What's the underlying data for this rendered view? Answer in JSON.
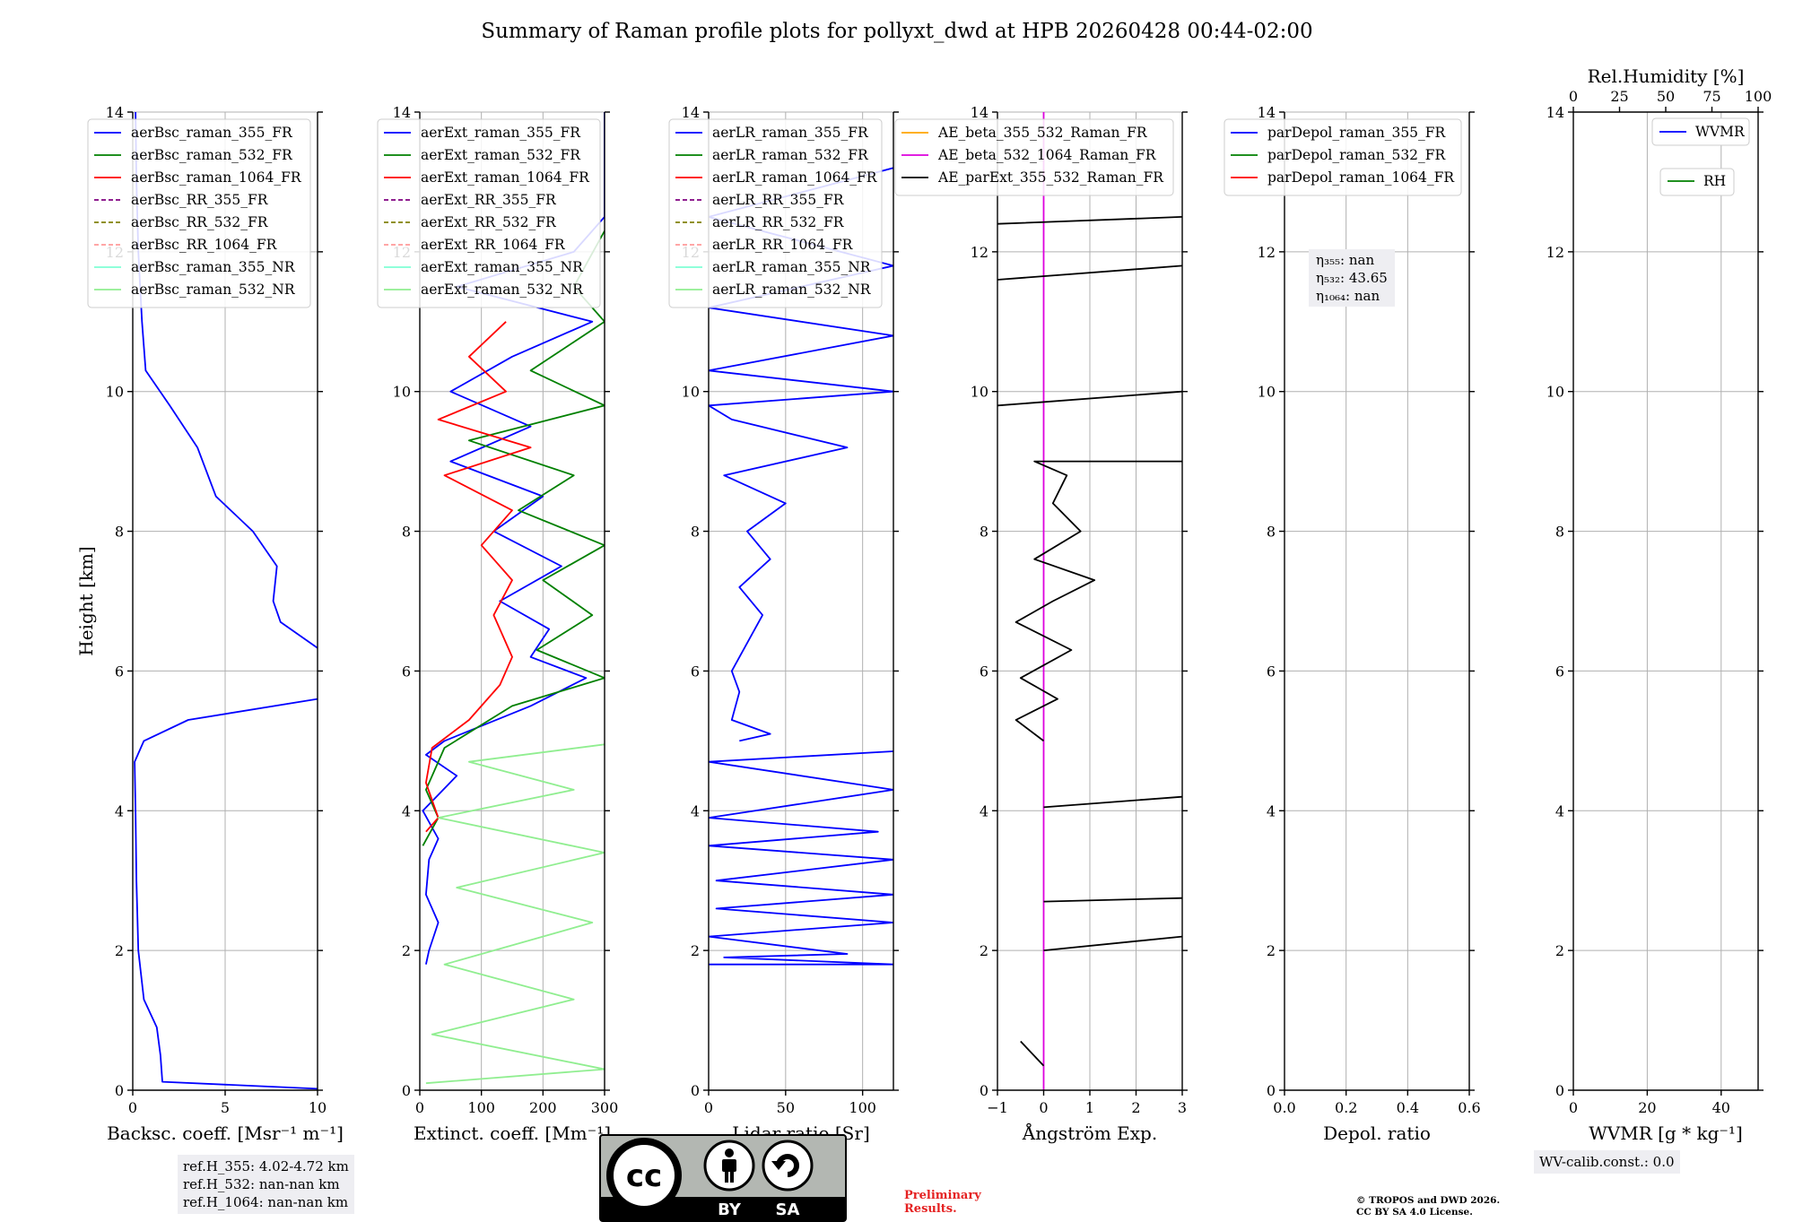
{
  "title": "Summary of Raman profile plots for pollyxt_dwd at HPB 20260428 00:44-02:00",
  "chart_data": [
    {
      "type": "line",
      "panel": "backscatter",
      "ylabel": "Height [km]",
      "xlabel": "Backsc. coeff. [Msr⁻¹ m⁻¹]",
      "xlim": [
        0,
        10
      ],
      "ylim": [
        0,
        14
      ],
      "xticks": [
        "0",
        "5",
        "10"
      ],
      "yticks": [
        "0",
        "2",
        "4",
        "6",
        "8",
        "10",
        "12",
        "14"
      ],
      "legend": [
        "aerBsc_raman_355_FR",
        "aerBsc_raman_532_FR",
        "aerBsc_raman_1064_FR",
        "aerBsc_RR_355_FR",
        "aerBsc_RR_532_FR",
        "aerBsc_RR_1064_FR",
        "aerBsc_raman_355_NR",
        "aerBsc_raman_532_NR"
      ],
      "series": [
        {
          "name": "aerBsc_raman_355_FR",
          "color": "#0000ff",
          "points": [
            [
              10,
              0.02
            ],
            [
              1.6,
              0.12
            ],
            [
              1.5,
              0.5
            ],
            [
              1.3,
              0.9
            ],
            [
              0.6,
              1.3
            ],
            [
              0.3,
              2
            ],
            [
              0.2,
              3
            ],
            [
              0.15,
              4
            ],
            [
              0.1,
              4.7
            ],
            [
              0.6,
              5.0
            ],
            [
              3,
              5.3
            ],
            [
              10,
              5.6
            ],
            [
              null,
              null
            ],
            [
              10,
              6.33
            ],
            [
              8,
              6.7
            ],
            [
              7.6,
              7
            ],
            [
              7.8,
              7.5
            ],
            [
              6.5,
              8
            ],
            [
              4.5,
              8.5
            ],
            [
              3.5,
              9.2
            ],
            [
              2,
              9.8
            ],
            [
              0.7,
              10.3
            ],
            [
              0.5,
              11
            ],
            [
              0.3,
              12
            ],
            [
              0.2,
              13
            ],
            [
              0.15,
              14
            ]
          ]
        }
      ]
    },
    {
      "type": "line",
      "panel": "extinction",
      "xlabel": "Extinct. coeff. [Mm⁻¹]",
      "xlim": [
        0,
        300
      ],
      "ylim": [
        0,
        14
      ],
      "xticks": [
        "0",
        "100",
        "200",
        "300"
      ],
      "yticks": [
        "0",
        "2",
        "4",
        "6",
        "8",
        "10",
        "12",
        "14"
      ],
      "legend": [
        "aerExt_raman_355_FR",
        "aerExt_raman_532_FR",
        "aerExt_raman_1064_FR",
        "aerExt_RR_355_FR",
        "aerExt_RR_532_FR",
        "aerExt_RR_1064_FR",
        "aerExt_raman_355_NR",
        "aerExt_raman_532_NR"
      ],
      "series": [
        {
          "name": "aerExt_raman_355_FR",
          "color": "#0000ff",
          "points": [
            [
              10,
              1.8
            ],
            [
              15,
              2.0
            ],
            [
              30,
              2.4
            ],
            [
              10,
              2.8
            ],
            [
              15,
              3.3
            ],
            [
              30,
              3.6
            ],
            [
              5,
              4.0
            ],
            [
              60,
              4.5
            ],
            [
              10,
              4.8
            ],
            [
              40,
              5.0
            ],
            [
              180,
              5.5
            ],
            [
              270,
              5.9
            ],
            [
              180,
              6.2
            ],
            [
              210,
              6.6
            ],
            [
              130,
              7
            ],
            [
              230,
              7.5
            ],
            [
              120,
              8
            ],
            [
              200,
              8.5
            ],
            [
              50,
              9
            ],
            [
              180,
              9.5
            ],
            [
              50,
              10
            ],
            [
              150,
              10.5
            ],
            [
              280,
              11
            ],
            [
              60,
              11.5
            ],
            [
              250,
              12
            ],
            [
              300,
              12.5
            ],
            [
              300,
              14
            ]
          ]
        },
        {
          "name": "aerExt_raman_532_FR",
          "color": "#008000",
          "points": [
            [
              5,
              3.5
            ],
            [
              30,
              3.9
            ],
            [
              10,
              4.3
            ],
            [
              40,
              4.9
            ],
            [
              150,
              5.5
            ],
            [
              300,
              5.9
            ],
            [
              190,
              6.3
            ],
            [
              280,
              6.8
            ],
            [
              200,
              7.3
            ],
            [
              300,
              7.8
            ],
            [
              160,
              8.3
            ],
            [
              250,
              8.8
            ],
            [
              80,
              9.3
            ],
            [
              300,
              9.8
            ],
            [
              180,
              10.3
            ],
            [
              300,
              11
            ],
            [
              250,
              11.5
            ],
            [
              300,
              12.3
            ]
          ]
        },
        {
          "name": "aerExt_raman_1064_FR",
          "color": "#ff0000",
          "points": [
            [
              10,
              3.7
            ],
            [
              30,
              3.9
            ],
            [
              10,
              4.4
            ],
            [
              20,
              4.9
            ],
            [
              80,
              5.3
            ],
            [
              130,
              5.8
            ],
            [
              150,
              6.2
            ],
            [
              120,
              6.8
            ],
            [
              150,
              7.3
            ],
            [
              100,
              7.8
            ],
            [
              150,
              8.3
            ],
            [
              40,
              8.8
            ],
            [
              180,
              9.2
            ],
            [
              30,
              9.6
            ],
            [
              140,
              10
            ],
            [
              80,
              10.5
            ],
            [
              140,
              11
            ]
          ]
        },
        {
          "name": "aerExt_raman_532_NR",
          "color": "#90ee90",
          "points": [
            [
              10,
              0.1
            ],
            [
              300,
              0.3
            ],
            [
              20,
              0.8
            ],
            [
              250,
              1.3
            ],
            [
              40,
              1.8
            ],
            [
              280,
              2.4
            ],
            [
              60,
              2.9
            ],
            [
              300,
              3.4
            ],
            [
              30,
              3.9
            ],
            [
              250,
              4.3
            ],
            [
              80,
              4.7
            ],
            [
              300,
              4.95
            ]
          ]
        }
      ]
    },
    {
      "type": "line",
      "panel": "lidar_ratio",
      "xlabel": "Lidar ratio [Sr]",
      "xlim": [
        0,
        120
      ],
      "ylim": [
        0,
        14
      ],
      "xticks": [
        "0",
        "50",
        "100"
      ],
      "yticks": [
        "0",
        "2",
        "4",
        "6",
        "8",
        "10",
        "12",
        "14"
      ],
      "legend": [
        "aerLR_raman_355_FR",
        "aerLR_raman_532_FR",
        "aerLR_raman_1064_FR",
        "aerLR_RR_355_FR",
        "aerLR_RR_532_FR",
        "aerLR_RR_1064_FR",
        "aerLR_raman_355_NR",
        "aerLR_raman_532_NR"
      ],
      "series": [
        {
          "name": "aerLR_raman_355_FR",
          "color": "#0000ff",
          "points": [
            [
              0,
              1.8
            ],
            [
              120,
              1.8
            ],
            [
              10,
              1.9
            ],
            [
              90,
              1.95
            ],
            [
              0,
              2.2
            ],
            [
              120,
              2.4
            ],
            [
              5,
              2.6
            ],
            [
              120,
              2.8
            ],
            [
              5,
              3.0
            ],
            [
              120,
              3.3
            ],
            [
              0,
              3.5
            ],
            [
              110,
              3.7
            ],
            [
              0,
              3.9
            ],
            [
              120,
              4.3
            ],
            [
              0,
              4.7
            ],
            [
              120,
              4.85
            ],
            [
              null,
              null
            ],
            [
              20,
              5.0
            ],
            [
              40,
              5.1
            ],
            [
              15,
              5.3
            ],
            [
              20,
              5.7
            ],
            [
              15,
              6.0
            ],
            [
              25,
              6.4
            ],
            [
              35,
              6.8
            ],
            [
              20,
              7.2
            ],
            [
              40,
              7.6
            ],
            [
              25,
              8.0
            ],
            [
              50,
              8.4
            ],
            [
              10,
              8.8
            ],
            [
              90,
              9.2
            ],
            [
              15,
              9.6
            ],
            [
              0,
              9.8
            ],
            [
              120,
              10
            ],
            [
              0,
              10.3
            ],
            [
              120,
              10.8
            ],
            [
              0,
              11.2
            ],
            [
              120,
              11.8
            ],
            [
              0,
              12.5
            ],
            [
              120,
              13.2
            ]
          ]
        }
      ]
    },
    {
      "type": "line",
      "panel": "angstrom",
      "xlabel": "Ångström Exp.",
      "xlim": [
        -1,
        3
      ],
      "ylim": [
        0,
        14
      ],
      "xticks": [
        "−1",
        "0",
        "1",
        "2",
        "3"
      ],
      "yticks": [
        "0",
        "2",
        "4",
        "6",
        "8",
        "10",
        "12",
        "14"
      ],
      "legend": [
        "AE_beta_355_532_Raman_FR",
        "AE_beta_532_1064_Raman_FR",
        "AE_parExt_355_532_Raman_FR"
      ],
      "series": [
        {
          "name": "AE_beta_532_1064_Raman_FR",
          "color": "#dd00dd",
          "points": [
            [
              0,
              0
            ],
            [
              0,
              14
            ]
          ]
        },
        {
          "name": "AE_parExt_355_532_Raman_FR",
          "color": "#000000",
          "points": [
            [
              0,
              0.35
            ],
            [
              -0.5,
              0.7
            ],
            [
              null,
              null
            ],
            [
              0,
              2.0
            ],
            [
              3,
              2.2
            ],
            [
              null,
              null
            ],
            [
              0,
              2.7
            ],
            [
              3,
              2.75
            ],
            [
              null,
              null
            ],
            [
              0,
              4.05
            ],
            [
              3,
              4.2
            ],
            [
              null,
              null
            ],
            [
              0,
              5.0
            ],
            [
              -0.6,
              5.3
            ],
            [
              0.3,
              5.6
            ],
            [
              -0.5,
              5.9
            ],
            [
              0.6,
              6.3
            ],
            [
              -0.6,
              6.7
            ],
            [
              0.2,
              7.0
            ],
            [
              1.1,
              7.3
            ],
            [
              -0.2,
              7.6
            ],
            [
              0.8,
              8.0
            ],
            [
              0.2,
              8.4
            ],
            [
              0.5,
              8.8
            ],
            [
              -0.2,
              9.0
            ],
            [
              3,
              9.0
            ],
            [
              null,
              null
            ],
            [
              -1,
              9.8
            ],
            [
              3,
              10.0
            ],
            [
              null,
              null
            ],
            [
              -1,
              11.6
            ],
            [
              3,
              11.8
            ],
            [
              null,
              null
            ],
            [
              -1,
              12.4
            ],
            [
              3,
              12.5
            ]
          ]
        }
      ]
    },
    {
      "type": "line",
      "panel": "depol",
      "xlabel": "Depol. ratio",
      "xlim": [
        0,
        0.6
      ],
      "ylim": [
        0,
        14
      ],
      "xticks": [
        "0.0",
        "0.2",
        "0.4",
        "0.6"
      ],
      "yticks": [
        "0",
        "2",
        "4",
        "6",
        "8",
        "10",
        "12",
        "14"
      ],
      "legend": [
        "parDepol_raman_355_FR",
        "parDepol_raman_532_FR",
        "parDepol_raman_1064_FR"
      ],
      "series": []
    },
    {
      "type": "line",
      "panel": "wvmr",
      "xlabel": "WVMR [g * kg⁻¹]",
      "top_xlabel": "Rel.Humidity [%]",
      "xlim": [
        0,
        50
      ],
      "ylim": [
        0,
        14
      ],
      "xticks": [
        "0",
        "20",
        "40"
      ],
      "top_xticks": [
        "0",
        "25",
        "50",
        "75",
        "100"
      ],
      "yticks": [
        "0",
        "2",
        "4",
        "6",
        "8",
        "10",
        "12",
        "14"
      ],
      "legend": [
        "WVMR",
        "RH"
      ],
      "series": []
    }
  ],
  "eta_box": {
    "eta355": "η₃₅₅: nan",
    "eta532": "η₅₃₂: 43.65",
    "eta1064": "η₁₀₆₄: nan"
  },
  "ref_heights": {
    "h355": "ref.H_355: 4.02-4.72 km",
    "h532": "ref.H_532: nan-nan km",
    "h1064": "ref.H_1064: nan-nan km"
  },
  "wv_calib": "WV-calib.const.: 0.0",
  "cc_badge": {
    "cc": "cc",
    "by": "BY",
    "sa": "SA"
  },
  "preliminary": {
    "line1": "Preliminary",
    "line2": "Results."
  },
  "copyright": {
    "line1": "© TROPOS and DWD 2026.",
    "line2": "CC BY SA 4.0 License."
  },
  "colors": {
    "line355": "#0000ff",
    "line532": "#008000",
    "line1064": "#ff0000",
    "rr355": "#800080",
    "rr532": "#808000",
    "rr1064": "#ff9999",
    "nr355": "#7fffd4",
    "nr532": "#90ee90",
    "ae_beta_355": "#ffa500",
    "ae_beta_532": "#dd00dd",
    "ae_ext": "#000000"
  }
}
